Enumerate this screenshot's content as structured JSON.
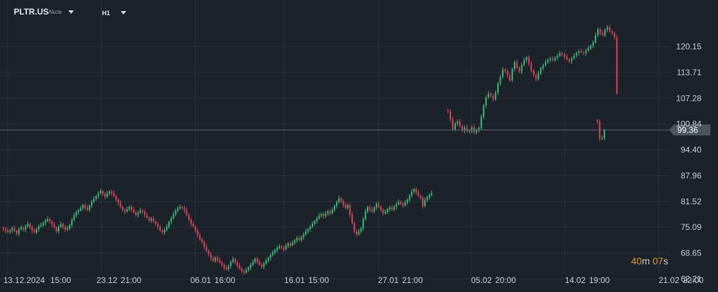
{
  "header": {
    "symbol": "PLTR.US",
    "instrument_type": "Akcie",
    "timeframe": "H1"
  },
  "countdown": {
    "minutes": "40",
    "minutes_unit": "m",
    "seconds": "07",
    "seconds_unit": "s"
  },
  "colors": {
    "background": "#1b2229",
    "grid": "#28323b",
    "up": "#3bbf78",
    "down": "#e0435a",
    "price_line": "#5d6b74",
    "price_badge": "#4a555d"
  },
  "chart_data": {
    "type": "candlestick",
    "ylim": [
      61.5,
      127.5
    ],
    "y_ticks": [
      "120.15",
      "113.71",
      "107.28",
      "100.84",
      "94.40",
      "87.96",
      "81.52",
      "75.09",
      "68.65",
      "62.21"
    ],
    "x_ticks": [
      "13.12.2024",
      "15:00",
      "23.12",
      "21:00",
      "06.01",
      "16:00",
      "16.01",
      "15:00",
      "27.01",
      "21:00",
      "05.02",
      "20:00",
      "14.02",
      "19:00",
      "21.02",
      "22:00"
    ],
    "current_price": {
      "value": 99.36,
      "label": "99.36"
    },
    "grid": true,
    "segments": [
      {
        "name": "seg1",
        "x_start": 5,
        "spacing": 3.2,
        "closes": [
          74.6,
          74.2,
          73.9,
          74.3,
          74.8,
          74.2,
          73.5,
          74.6,
          75.0,
          74.5,
          75.3,
          75.9,
          75.1,
          74.2,
          73.8,
          74.6,
          75.3,
          75.6,
          76.1,
          76.7,
          77.1,
          76.5,
          75.8,
          75.0,
          74.1,
          75.2,
          75.9,
          75.1,
          74.5,
          74.8,
          75.6,
          76.9,
          78.0,
          78.9,
          79.3,
          79.8,
          80.6,
          80.0,
          79.4,
          80.5,
          81.4,
          82.2,
          82.8,
          83.6,
          84.1,
          83.4,
          82.7,
          83.5,
          84.0,
          83.6,
          82.9,
          82.0,
          81.2,
          80.1,
          79.4,
          79.0,
          79.6,
          80.2,
          79.5,
          78.8,
          78.2,
          78.7,
          79.3,
          79.0,
          78.1,
          77.5,
          76.8,
          77.2,
          76.5,
          75.9,
          75.1,
          74.3,
          73.8,
          74.4,
          75.2,
          76.4,
          77.3,
          78.3,
          79.3,
          79.8,
          80.1,
          80.0,
          79.3,
          78.2,
          77.0,
          75.9,
          75.3,
          74.2,
          73.1,
          72.1,
          71.4,
          70.2,
          69.2,
          68.4,
          67.3,
          66.7,
          67.5,
          66.9,
          66.3,
          65.6,
          65.0,
          64.6,
          65.4,
          66.4,
          67.1,
          66.3,
          65.5,
          64.8,
          64.1,
          63.8,
          64.4,
          65.0,
          65.7,
          66.4,
          67.2,
          66.5,
          65.8,
          65.2,
          66.0,
          66.7,
          67.4,
          68.1,
          68.7,
          69.4,
          69.9,
          70.3,
          70.0,
          69.6,
          70.4,
          71.0,
          70.6,
          71.2,
          71.8,
          72.4,
          71.9,
          72.6,
          73.3,
          74.0,
          74.6,
          75.2,
          76.0,
          76.6,
          77.3,
          78.0,
          78.4,
          77.8,
          78.5,
          79.1,
          78.6,
          79.4,
          80.4,
          81.3,
          82.3,
          81.6,
          80.6,
          79.9,
          80.6,
          78.2,
          76.1,
          74.0,
          73.3,
          74.0,
          74.8,
          77.1,
          79.0,
          80.1,
          79.5,
          79.0,
          80.0,
          80.9,
          80.2,
          79.4,
          78.6,
          78.9,
          79.6,
          80.0,
          79.5,
          80.2,
          80.8,
          81.4,
          81.0,
          80.5,
          81.2,
          82.0,
          82.9,
          84.0,
          84.6,
          83.8,
          82.9,
          82.4,
          80.4,
          81.9,
          82.6,
          83.1,
          83.6
        ]
      },
      {
        "name": "seg2",
        "x_start": 649.5,
        "spacing": 3.45,
        "closes": [
          104.0,
          102.0,
          99.5,
          101.0,
          101.5,
          100.3,
          99.2,
          100.0,
          99.0,
          99.2,
          100.0,
          98.7,
          99.4,
          99.8,
          102.6,
          105.5,
          107.5,
          108.4,
          107.9,
          107.0,
          108.6,
          111.0,
          112.6,
          114.4,
          114.1,
          113.0,
          111.8,
          114.6,
          116.3,
          114.9,
          114.0,
          115.6,
          116.8,
          117.5,
          116.0,
          114.2,
          113.0,
          112.1,
          113.5,
          114.8,
          115.5,
          116.3,
          116.9,
          117.2,
          116.8,
          117.4,
          117.9,
          118.5,
          118.2,
          117.6,
          117.0,
          116.5,
          117.2,
          117.9,
          118.6,
          119.0,
          118.8,
          118.5,
          119.2,
          119.8,
          120.4,
          121.2,
          123.0,
          124.5,
          123.6,
          123.0,
          124.4,
          125.0,
          124.0,
          123.5,
          122.5,
          108.5
        ]
      },
      {
        "name": "seg3",
        "x_start": 866,
        "spacing": 3.45,
        "closes": [
          101.5,
          97.2,
          97.3,
          99.3
        ]
      }
    ]
  }
}
